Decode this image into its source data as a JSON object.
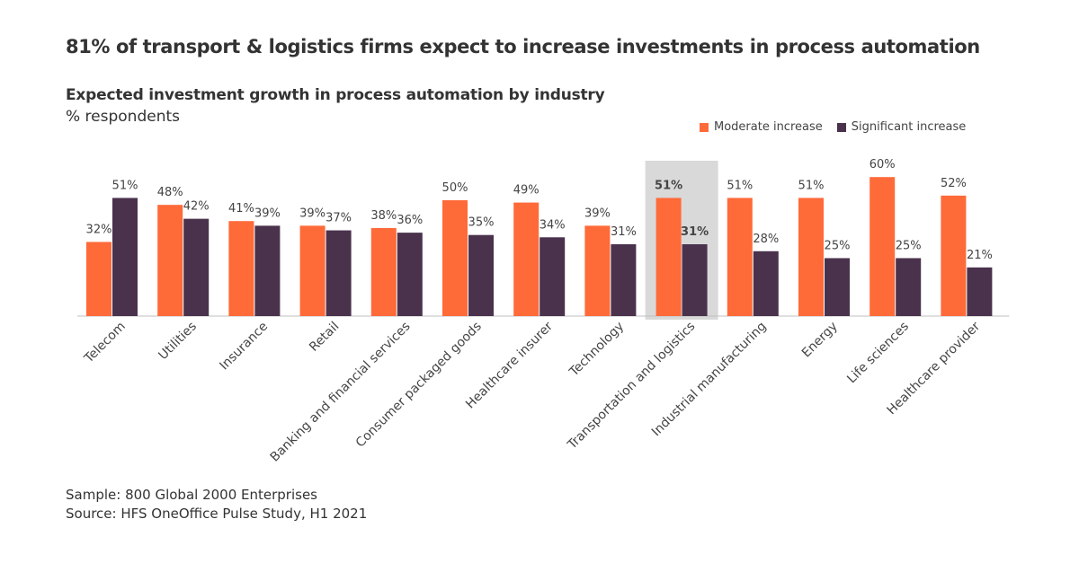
{
  "headline": "81% of transport & logistics firms expect to increase investments in process automation",
  "footer": {
    "sample": "Sample: 800 Global 2000 Enterprises",
    "source": "Source: HFS OneOffice Pulse Study, H1 2021"
  },
  "chart_data": {
    "type": "bar",
    "title": "Expected investment growth in process automation by industry",
    "subtitle": "% respondents",
    "xlabel": "",
    "ylabel": "",
    "ylim": [
      0,
      60
    ],
    "grid": false,
    "legend_position": "top-right",
    "highlight_category": "Transportation and logistics",
    "value_suffix": "%",
    "categories": [
      "Telecom",
      "Utilities",
      "Insurance",
      "Retail",
      "Banking and financial services",
      "Consumer packaged goods",
      "Healthcare insurer",
      "Technology",
      "Transportation and logistics",
      "Industrial manufacturing",
      "Energy",
      "Life sciences",
      "Healthcare provider"
    ],
    "series": [
      {
        "name": "Moderate increase",
        "color": "#ff6a39",
        "values": [
          32,
          48,
          41,
          39,
          38,
          50,
          49,
          39,
          51,
          51,
          51,
          60,
          52
        ]
      },
      {
        "name": "Significant increase",
        "color": "#4a324d",
        "values": [
          51,
          42,
          39,
          37,
          36,
          35,
          34,
          31,
          31,
          28,
          25,
          25,
          21
        ]
      }
    ]
  }
}
